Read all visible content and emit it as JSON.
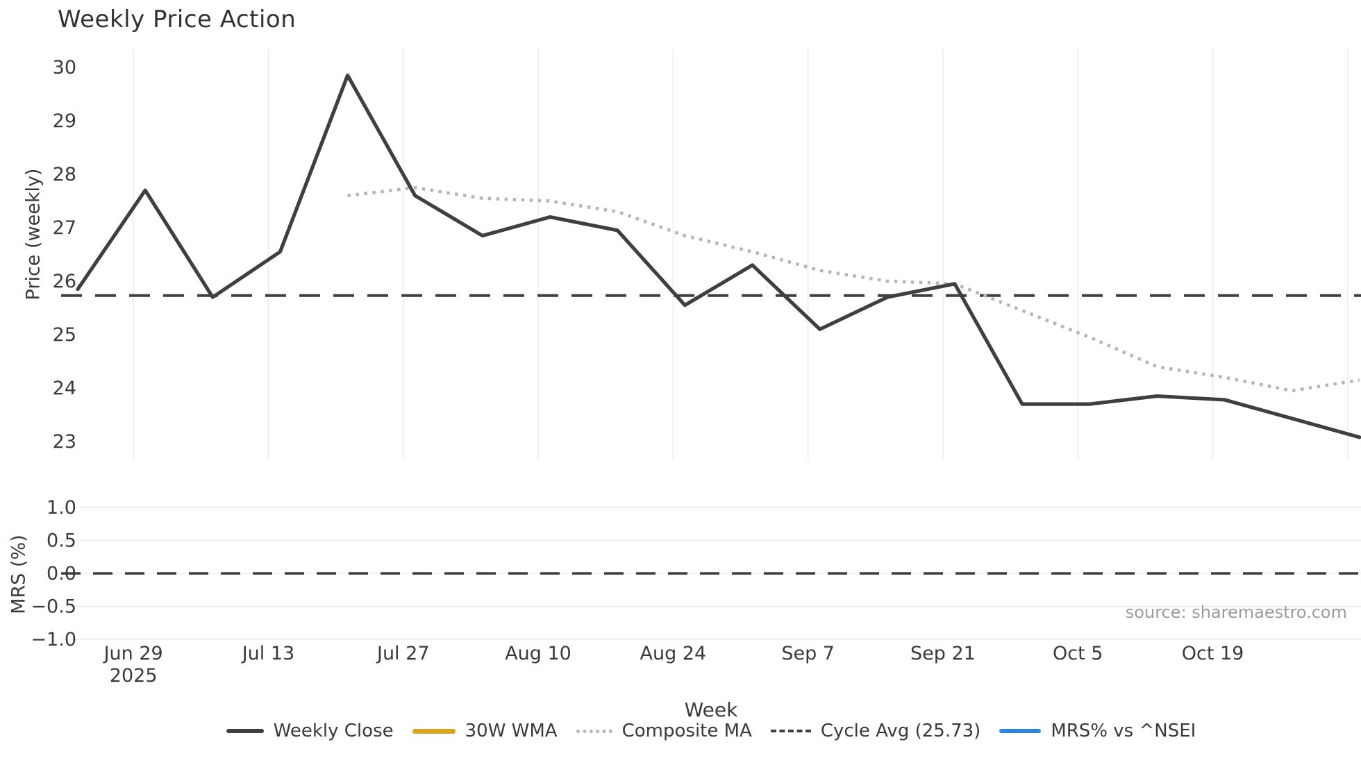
{
  "title": "Weekly Price Action",
  "source_text": "source: sharemaestro.com",
  "price_panel": {
    "ylabel": "Price (weekly)",
    "ytick_labels": [
      "30",
      "29",
      "28",
      "27",
      "26",
      "25",
      "24",
      "23"
    ]
  },
  "mrs_panel": {
    "ylabel": "MRS (%)",
    "ytick_labels": [
      "1.0",
      "0.5",
      "0.0",
      "−0.5",
      "−1.0"
    ]
  },
  "xaxis": {
    "title": "Week",
    "tick_labels": [
      "Jun 29",
      "Jul 13",
      "Jul 27",
      "Aug 10",
      "Aug 24",
      "Sep 7",
      "Sep 21",
      "Oct 5",
      "Oct 19"
    ],
    "first_tick_year": "2025"
  },
  "legend": {
    "items": [
      {
        "label": "Weekly Close",
        "style": "solid",
        "color": "#3f3f3f"
      },
      {
        "label": "30W WMA",
        "style": "solid",
        "color": "#DBA521"
      },
      {
        "label": "Composite MA",
        "style": "dotted",
        "color": "#b5b5b5"
      },
      {
        "label": "Cycle Avg (25.73)",
        "style": "dashed",
        "color": "#3f3f3f"
      },
      {
        "label": "MRS% vs ^NSEI",
        "style": "solid",
        "color": "#2F86D9"
      }
    ]
  },
  "colors": {
    "weekly_close": "#3f3f3f",
    "wma_30w": "#DBA521",
    "composite_ma": "#b5b5b5",
    "cycle_avg": "#3f3f3f",
    "mrs_line": "#2F86D9",
    "grid": "#ebedf2",
    "text": "#3a3a3a",
    "source": "#9b9b9b"
  },
  "chart_data": {
    "type": "line",
    "title": "Weekly Price Action",
    "xlabel": "Week",
    "x": [
      "Jun 23",
      "Jun 30",
      "Jul 7",
      "Jul 14",
      "Jul 21",
      "Jul 28",
      "Aug 4",
      "Aug 11",
      "Aug 18",
      "Aug 25",
      "Sep 1",
      "Sep 8",
      "Sep 15",
      "Sep 22",
      "Sep 29",
      "Oct 6",
      "Oct 13",
      "Oct 20",
      "Oct 27",
      "Nov 3"
    ],
    "x_tick_labels_shown": [
      "Jun 29 2025",
      "Jul 13",
      "Jul 27",
      "Aug 10",
      "Aug 24",
      "Sep 7",
      "Sep 21",
      "Oct 5",
      "Oct 19"
    ],
    "panels": [
      {
        "name": "price",
        "ylabel": "Price (weekly)",
        "ylim": [
          22.65,
          30.35
        ],
        "yticks": [
          30,
          29,
          28,
          27,
          26,
          25,
          24,
          23
        ],
        "grid": "vertical-only",
        "series": [
          {
            "name": "Weekly Close",
            "style": "solid",
            "values": [
              25.85,
              27.7,
              25.7,
              26.55,
              29.85,
              27.6,
              26.85,
              27.2,
              26.95,
              25.55,
              26.3,
              25.1,
              25.7,
              25.95,
              23.7,
              23.7,
              23.85,
              23.78,
              23.43,
              23.08
            ]
          },
          {
            "name": "30W WMA",
            "style": "solid",
            "values": []
          },
          {
            "name": "Composite MA",
            "style": "dotted",
            "values": [
              null,
              null,
              null,
              null,
              27.6,
              27.75,
              27.55,
              27.5,
              27.3,
              26.85,
              26.55,
              26.2,
              26.0,
              25.95,
              25.45,
              24.95,
              24.4,
              24.2,
              23.95,
              24.15
            ]
          },
          {
            "name": "Cycle Avg",
            "style": "dashed",
            "constant": 25.73
          }
        ]
      },
      {
        "name": "mrs",
        "ylabel": "MRS (%)",
        "ylim": [
          -1.0,
          1.0
        ],
        "yticks": [
          1.0,
          0.5,
          0.0,
          -0.5,
          -1.0
        ],
        "grid": "horizontal-only",
        "zero_line": {
          "style": "dashed",
          "value": 0.0
        },
        "series": [
          {
            "name": "MRS% vs ^NSEI",
            "style": "solid",
            "values": []
          }
        ]
      }
    ],
    "legend_position": "bottom-center"
  }
}
